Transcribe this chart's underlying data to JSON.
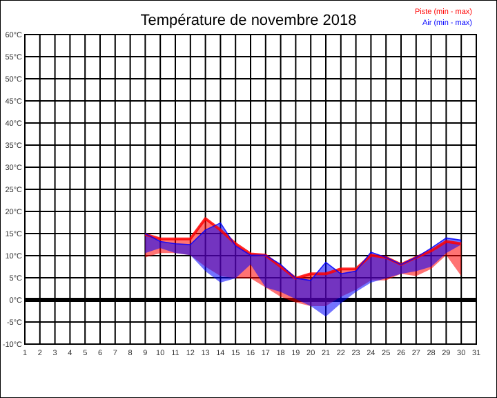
{
  "chart_data": {
    "type": "line",
    "title": "Température de novembre 2018",
    "x": [
      9,
      10,
      11,
      12,
      13,
      14,
      15,
      16,
      17,
      18,
      19,
      20,
      21,
      22,
      23,
      24,
      25,
      26,
      27,
      28,
      29,
      30
    ],
    "series": [
      {
        "name": "Piste (min - max)",
        "color": "#ff0000",
        "values": [
          14.8,
          13.8,
          13.8,
          13.8,
          18.4,
          15.8,
          12.7,
          10.4,
          10.1,
          7.5,
          4.9,
          5.9,
          5.9,
          7,
          7,
          10.1,
          9.6,
          8,
          9.6,
          11.1,
          13.2,
          12.7
        ],
        "upper": [
          14.8,
          13.8,
          13.8,
          13.8,
          18.4,
          15.8,
          12.7,
          10.4,
          10.1,
          7.5,
          4.9,
          5.9,
          5.9,
          7,
          7,
          10.1,
          9.6,
          8,
          9.6,
          11.1,
          13.2,
          12.7
        ],
        "lower": [
          9.6,
          10.6,
          10.6,
          10.1,
          7.5,
          5.4,
          4.9,
          4.9,
          2.8,
          0.7,
          -0.6,
          -1.4,
          -1.4,
          0.7,
          2.3,
          4.4,
          4.4,
          5.9,
          5.4,
          7,
          10.1,
          5.4
        ]
      },
      {
        "name": "Air (min - max)",
        "color": "#0000ff",
        "values": [
          15,
          13.2,
          12.7,
          12.5,
          15.8,
          17.4,
          12.2,
          10.1,
          10.1,
          8,
          4.9,
          4.4,
          8.5,
          5.9,
          6.5,
          10.8,
          9.6,
          8,
          9.6,
          11.7,
          14,
          13.5
        ],
        "upper": [
          15,
          13.2,
          12.7,
          12.5,
          15.8,
          17.4,
          12.2,
          10.1,
          10.1,
          8,
          4.9,
          4.4,
          8.5,
          5.9,
          6.5,
          10.8,
          9.6,
          8,
          9.6,
          11.7,
          14,
          13.5
        ],
        "lower": [
          10.6,
          11.7,
          10.6,
          10.1,
          6.5,
          3.9,
          4.9,
          8,
          2.8,
          1.8,
          0.2,
          -1.4,
          -3.8,
          -0.8,
          1.8,
          3.9,
          4.9,
          5.9,
          6.5,
          7.5,
          10.6,
          12.5
        ]
      }
    ],
    "xlim": [
      1,
      31
    ],
    "xticks": [
      1,
      2,
      3,
      4,
      5,
      6,
      7,
      8,
      9,
      10,
      11,
      12,
      13,
      14,
      15,
      16,
      17,
      18,
      19,
      20,
      21,
      22,
      23,
      24,
      25,
      26,
      27,
      28,
      29,
      30,
      31
    ],
    "ylim": [
      -10,
      60
    ],
    "yticks": [
      {
        "value": -10,
        "label": "-10°C"
      },
      {
        "value": -5,
        "label": "-5°C"
      },
      {
        "value": 0,
        "label": "0°C"
      },
      {
        "value": 5,
        "label": "5°C"
      },
      {
        "value": 10,
        "label": "10°C"
      },
      {
        "value": 15,
        "label": "15°C"
      },
      {
        "value": 20,
        "label": "20°C"
      },
      {
        "value": 25,
        "label": "25°C"
      },
      {
        "value": 30,
        "label": "30°C"
      },
      {
        "value": 35,
        "label": "35°C"
      },
      {
        "value": 40,
        "label": "40°C"
      },
      {
        "value": 45,
        "label": "45°C"
      },
      {
        "value": 50,
        "label": "50°C"
      },
      {
        "value": 55,
        "label": "55°C"
      },
      {
        "value": 60,
        "label": "60°C"
      }
    ],
    "grid": true,
    "legend": "top right",
    "ref_lines": [
      {
        "axis": "y",
        "value": 0,
        "color": "#000000"
      }
    ]
  }
}
